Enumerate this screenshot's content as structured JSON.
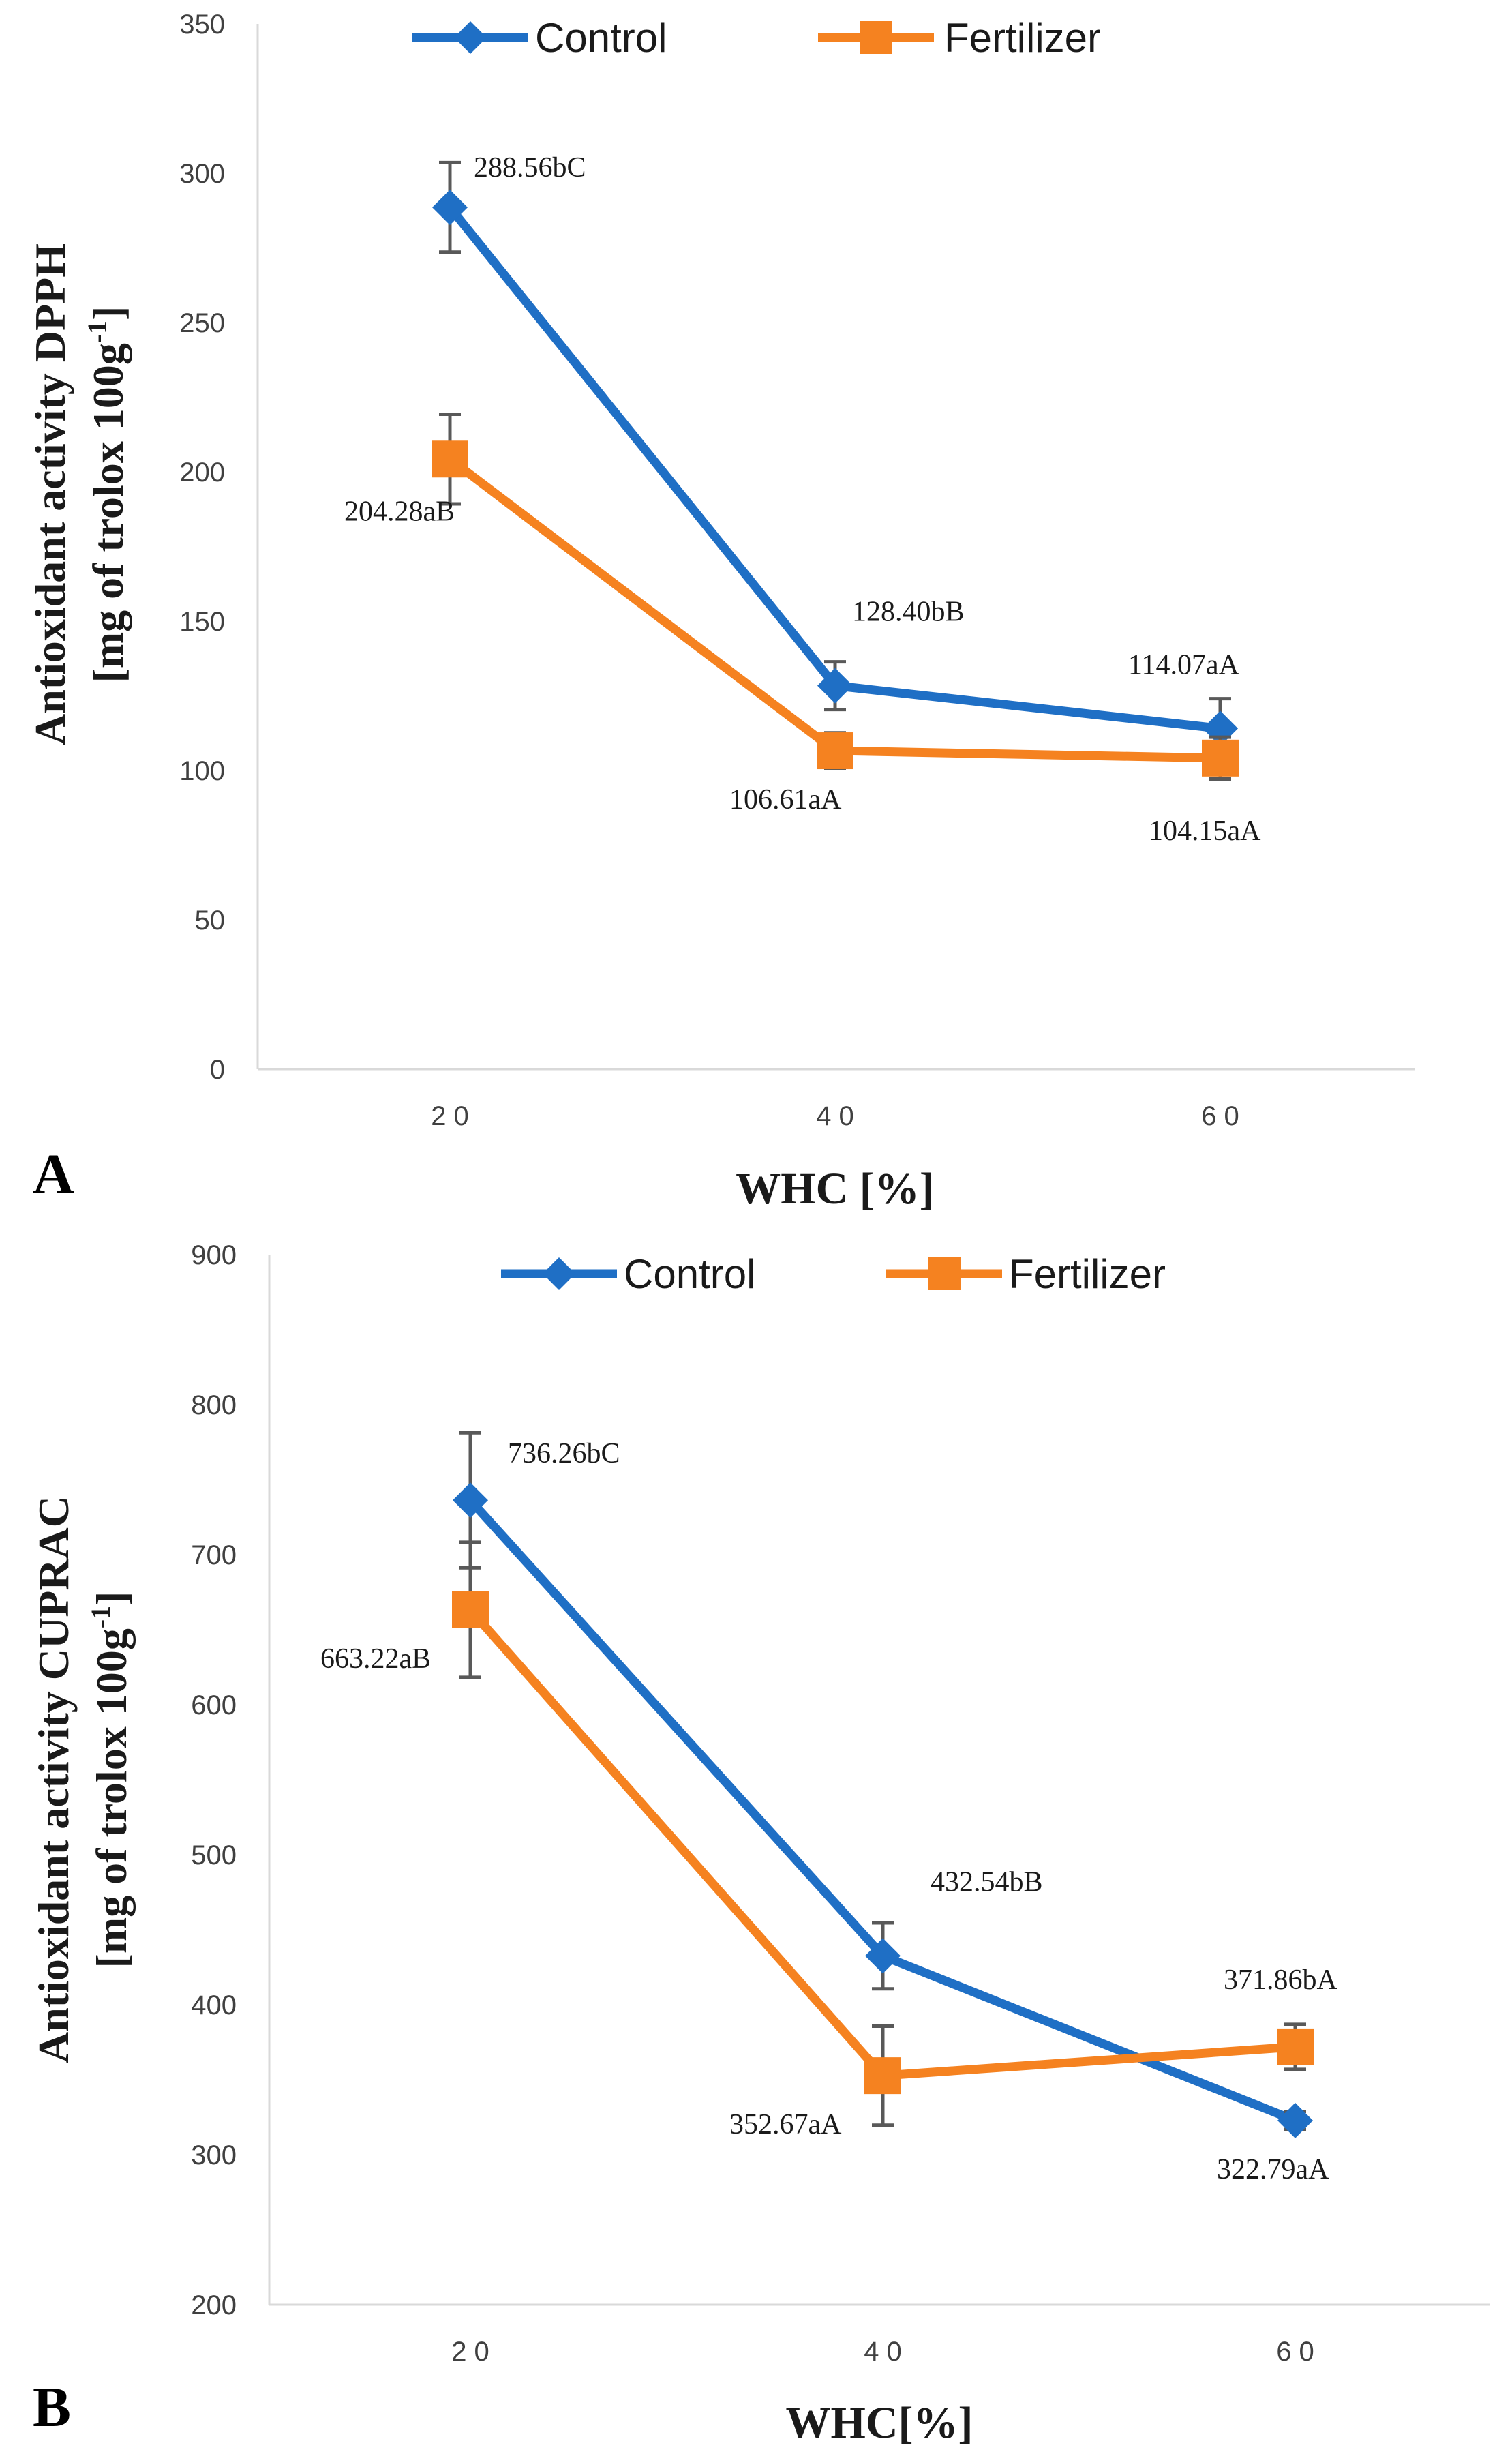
{
  "colors": {
    "control": "#1f6fc5",
    "fertilizer": "#f58220",
    "axis": "#d9d9d9",
    "error": "#595959"
  },
  "chart_data": [
    {
      "type": "line",
      "panel_label": "A",
      "categories": [
        "2 0",
        "4 0",
        "6 0"
      ],
      "series": [
        {
          "name": "Control",
          "marker": "diamond",
          "values": [
            288.56,
            128.4,
            114.07
          ],
          "errors": [
            15,
            8,
            10
          ],
          "labels": [
            "288.56bC",
            "128.40bB",
            "114.07aA"
          ]
        },
        {
          "name": "Fertilizer",
          "marker": "square",
          "values": [
            204.28,
            106.61,
            104.15
          ],
          "errors": [
            15,
            6,
            7
          ],
          "labels": [
            "204.28aB",
            "106.61aA",
            "104.15aA"
          ]
        }
      ],
      "ylim": [
        0,
        350
      ],
      "yticks": [
        0,
        50,
        100,
        150,
        200,
        250,
        300,
        350
      ],
      "ylabel": [
        "Antioxidant activity DPPH",
        "[mg of trolox 100g",
        "-1",
        "]"
      ],
      "xlabel": "WHC [%]",
      "legend": "top"
    },
    {
      "type": "line",
      "panel_label": "B",
      "categories": [
        "2 0",
        "4 0",
        "6 0"
      ],
      "series": [
        {
          "name": "Control",
          "marker": "diamond",
          "values": [
            736.26,
            432.54,
            322.79
          ],
          "errors": [
            45,
            22,
            6
          ],
          "labels": [
            "736.26bC",
            "432.54bB",
            "322.79aA"
          ]
        },
        {
          "name": "Fertilizer",
          "marker": "square",
          "values": [
            663.22,
            352.67,
            371.86
          ],
          "errors": [
            45,
            33,
            15
          ],
          "labels": [
            "663.22aB",
            "352.67aA",
            "371.86bA"
          ]
        }
      ],
      "ylim": [
        200,
        900
      ],
      "yticks": [
        200,
        300,
        400,
        500,
        600,
        700,
        800,
        900
      ],
      "ylabel": [
        "Antioxidant activity CUPRAC",
        "[mg of trolox 100g",
        "-1",
        "]"
      ],
      "xlabel": "WHC[%]",
      "legend": "top"
    }
  ]
}
